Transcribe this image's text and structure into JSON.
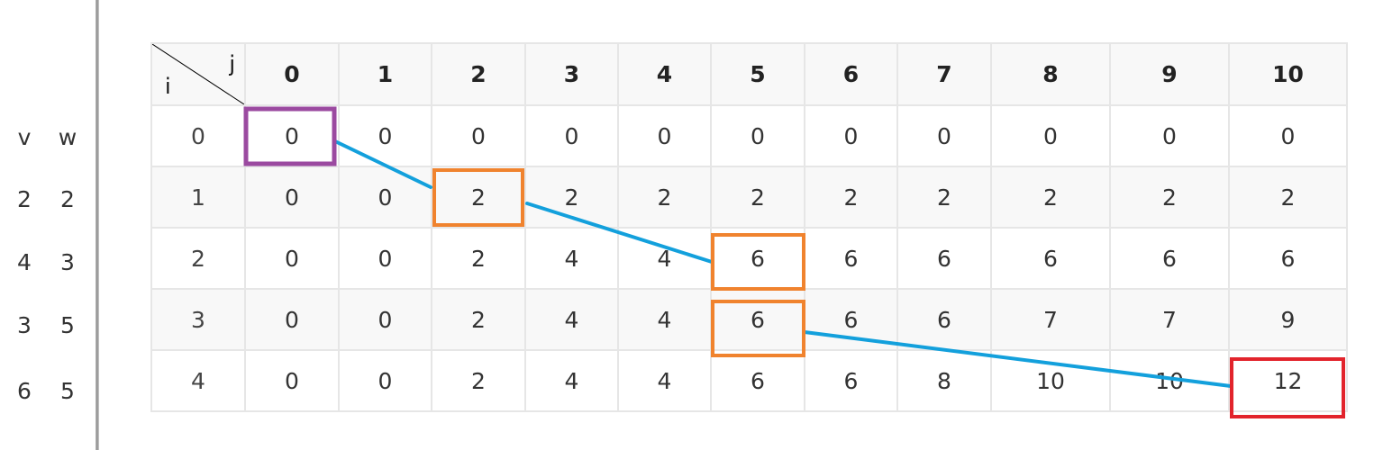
{
  "header": {
    "corner_row_label": "i",
    "corner_col_label": "j",
    "columns": [
      "0",
      "1",
      "2",
      "3",
      "4",
      "5",
      "6",
      "7",
      "8",
      "9",
      "10"
    ]
  },
  "items": {
    "header_v": "v",
    "header_w": "w",
    "rows": [
      {
        "v": "2",
        "w": "2"
      },
      {
        "v": "4",
        "w": "3"
      },
      {
        "v": "3",
        "w": "5"
      },
      {
        "v": "6",
        "w": "5"
      }
    ]
  },
  "table": {
    "rows": [
      {
        "i": "0",
        "cells": [
          "0",
          "0",
          "0",
          "0",
          "0",
          "0",
          "0",
          "0",
          "0",
          "0",
          "0"
        ]
      },
      {
        "i": "1",
        "cells": [
          "0",
          "0",
          "2",
          "2",
          "2",
          "2",
          "2",
          "2",
          "2",
          "2",
          "2"
        ]
      },
      {
        "i": "2",
        "cells": [
          "0",
          "0",
          "2",
          "4",
          "4",
          "6",
          "6",
          "6",
          "6",
          "6",
          "6"
        ]
      },
      {
        "i": "3",
        "cells": [
          "0",
          "0",
          "2",
          "4",
          "4",
          "6",
          "6",
          "6",
          "7",
          "7",
          "9"
        ]
      },
      {
        "i": "4",
        "cells": [
          "0",
          "0",
          "2",
          "4",
          "4",
          "6",
          "6",
          "8",
          "10",
          "10",
          "12"
        ]
      }
    ]
  },
  "highlights": {
    "colors": {
      "start": "#9b4aa0",
      "path": "#f0832e",
      "end": "#e2242c",
      "line": "#13a0dc"
    }
  }
}
